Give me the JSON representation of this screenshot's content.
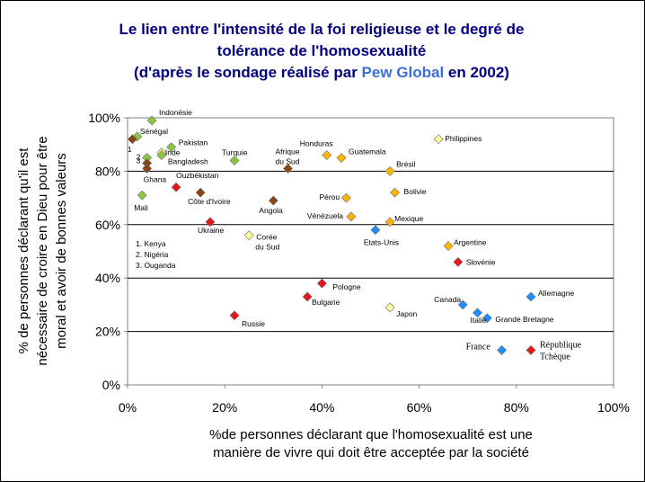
{
  "chart_data": {
    "type": "scatter",
    "title": {
      "line1": "Le lien entre l'intensité de la foi religieuse et le degré de",
      "line2": "tolérance de l'homosexualité",
      "line3_prefix": "(d'après le sondage réalisé par ",
      "line3_highlight": "Pew Global",
      "line3_suffix": " en 2002)"
    },
    "xlabel": {
      "line1": "%de personnes déclarant que l'homosexualité est une",
      "line2": "manière de vivre qui doit être acceptée par la société"
    },
    "ylabel": {
      "line1": "% de personnes déclarant qu'il est",
      "line2": "nécessaire de croire en Dieu pour être",
      "line3": "moral et avoir de bonnes valeurs"
    },
    "xlim": [
      0,
      100
    ],
    "ylim": [
      0,
      100
    ],
    "x_ticks": [
      "0%",
      "20%",
      "40%",
      "60%",
      "80%",
      "100%"
    ],
    "y_ticks": [
      "0%",
      "20%",
      "40%",
      "60%",
      "80%",
      "100%"
    ],
    "grid": "horizontal",
    "colors": {
      "title": "#000080",
      "highlight": "#3a6fd8",
      "africa": "#8dc63f",
      "asia_orange": "#ffb400",
      "asia_pale": "#ffff99",
      "latin": "#ffb400",
      "brown": "#8b4513",
      "red": "#e8161b",
      "blue": "#1e8fff",
      "pale_blue": "#9fd6ff"
    },
    "note": [
      "1. Kenya",
      "2. Nigéria",
      "3. Ouganda"
    ],
    "points": [
      {
        "label": "Indonésie",
        "x": 5,
        "y": 99,
        "color": "#8dc63f",
        "serif": false
      },
      {
        "label": "Sénégal",
        "x": 2,
        "y": 93,
        "color": "#8dc63f",
        "serif": false
      },
      {
        "label": "1",
        "x": 1,
        "y": 92,
        "color": "#8b4513",
        "serif": false
      },
      {
        "label": "2",
        "x": 4,
        "y": 85,
        "color": "#8dc63f",
        "serif": false
      },
      {
        "label": "3",
        "x": 4,
        "y": 83,
        "color": "#8b4513",
        "serif": false
      },
      {
        "label": "Pakistan",
        "x": 9,
        "y": 89,
        "color": "#8dc63f",
        "serif": false
      },
      {
        "label": "Inde",
        "x": 7,
        "y": 87,
        "color": "#ffff99",
        "serif": false
      },
      {
        "label": "Bangladesh",
        "x": 7,
        "y": 86,
        "color": "#8dc63f",
        "serif": false
      },
      {
        "label": "Ghana",
        "x": 4,
        "y": 81,
        "color": "#8b4513",
        "serif": false
      },
      {
        "label": "Mali",
        "x": 3,
        "y": 71,
        "color": "#8dc63f",
        "serif": false
      },
      {
        "label": "Ouzbékistan",
        "x": 10,
        "y": 74,
        "color": "#e8161b",
        "serif": false
      },
      {
        "label": "Côte d'Ivoire",
        "x": 15,
        "y": 72,
        "color": "#8b4513",
        "serif": false
      },
      {
        "label": "Turquie",
        "x": 22,
        "y": 84,
        "color": "#8dc63f",
        "serif": false
      },
      {
        "label": "Afrique du Sud",
        "x": 33,
        "y": 81,
        "color": "#8b4513",
        "serif": false
      },
      {
        "label": "Angola",
        "x": 30,
        "y": 69,
        "color": "#8b4513",
        "serif": false
      },
      {
        "label": "Ukraine",
        "x": 17,
        "y": 61,
        "color": "#e8161b",
        "serif": false
      },
      {
        "label": "Corée du Sud",
        "x": 25,
        "y": 56,
        "color": "#ffff99",
        "serif": false
      },
      {
        "label": "Honduras",
        "x": 41,
        "y": 86,
        "color": "#ffb400",
        "serif": false
      },
      {
        "label": "Guatemala",
        "x": 44,
        "y": 85,
        "color": "#ffb400",
        "serif": false
      },
      {
        "label": "Brésil",
        "x": 54,
        "y": 80,
        "color": "#ffb400",
        "serif": false
      },
      {
        "label": "Philippines",
        "x": 64,
        "y": 92,
        "color": "#ffff99",
        "serif": false
      },
      {
        "label": "Bolivie",
        "x": 55,
        "y": 72,
        "color": "#ffb400",
        "serif": false
      },
      {
        "label": "Pérou",
        "x": 45,
        "y": 70,
        "color": "#ffb400",
        "serif": false
      },
      {
        "label": "Vénézuela",
        "x": 46,
        "y": 63,
        "color": "#ffb400",
        "serif": false
      },
      {
        "label": "Mexique",
        "x": 54,
        "y": 61,
        "color": "#ffb400",
        "serif": false
      },
      {
        "label": "Etats-Unis",
        "x": 51,
        "y": 58,
        "color": "#1e8fff",
        "serif": false
      },
      {
        "label": "Argentine",
        "x": 66,
        "y": 52,
        "color": "#ffb400",
        "serif": false
      },
      {
        "label": "Slovénie",
        "x": 68,
        "y": 46,
        "color": "#e8161b",
        "serif": false
      },
      {
        "label": "Pologne",
        "x": 40,
        "y": 38,
        "color": "#e8161b",
        "serif": false
      },
      {
        "label": "Bulgarie",
        "x": 37,
        "y": 33,
        "color": "#e8161b",
        "serif": false
      },
      {
        "label": "Japon",
        "x": 54,
        "y": 29,
        "color": "#ffff99",
        "serif": false
      },
      {
        "label": "Russie",
        "x": 22,
        "y": 26,
        "color": "#e8161b",
        "serif": false
      },
      {
        "label": "Canada",
        "x": 69,
        "y": 30,
        "color": "#1e8fff",
        "serif": false
      },
      {
        "label": "Italie",
        "x": 72,
        "y": 27,
        "color": "#1e8fff",
        "serif": false
      },
      {
        "label": "Grande Bretagne",
        "x": 74,
        "y": 25,
        "color": "#1e8fff",
        "serif": false
      },
      {
        "label": "Allemagne",
        "x": 83,
        "y": 33,
        "color": "#1e8fff",
        "serif": false
      },
      {
        "label": "France",
        "x": 77,
        "y": 13,
        "color": "#1e8fff",
        "serif": true
      },
      {
        "label": "République Tchèque",
        "x": 83,
        "y": 13,
        "color": "#e8161b",
        "serif": true
      }
    ]
  }
}
